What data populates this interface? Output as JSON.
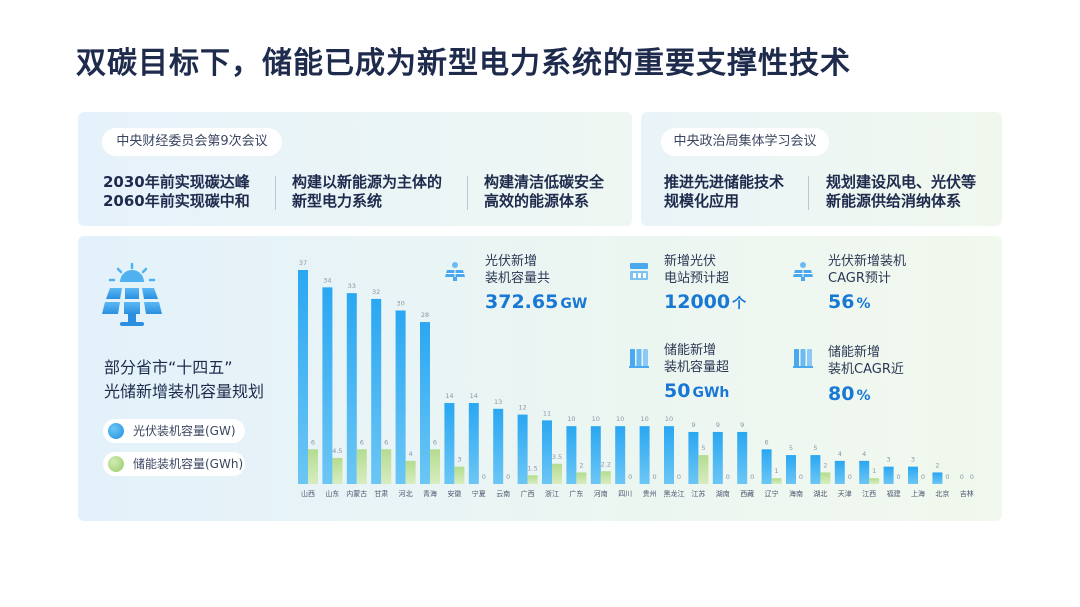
{
  "title": "双碳目标下，储能已成为新型电力系统的重要支撑性技术",
  "meetings": {
    "left": {
      "name": "中央财经委员会第9次会议",
      "goals": [
        [
          "2030年前实现碳达峰",
          "2060年前实现碳中和"
        ],
        [
          "构建以新能源为主体的",
          "新型电力系统"
        ],
        [
          "构建清洁低碳安全",
          "高效的能源体系"
        ]
      ]
    },
    "right": {
      "name": "中央政治局集体学习会议",
      "goals": [
        [
          "推进先进储能技术",
          "规模化应用"
        ],
        [
          "规划建设风电、光伏等",
          "新能源供给消纳体系"
        ]
      ]
    }
  },
  "left_panel": {
    "title_line1": "部分省市“十四五”",
    "title_line2": "光储新增装机容量规划"
  },
  "stats": [
    {
      "icon": "solar-panel-icon",
      "label1": "光伏新增",
      "label2": "装机容量共",
      "value": "372.65",
      "unit": "GW"
    },
    {
      "icon": "power-station-icon",
      "label1": "新增光伏",
      "label2": "电站预计超",
      "value": "12000",
      "unit": "个"
    },
    {
      "icon": "solar-panel-icon",
      "label1": "光伏新增装机",
      "label2": "CAGR预计",
      "value": "56",
      "unit": "%"
    },
    {
      "icon": "battery-storage-icon",
      "label1": "储能新增",
      "label2": "装机容量超",
      "value": "50",
      "unit": "GWh"
    },
    {
      "icon": "battery-storage-icon",
      "label1": "储能新增",
      "label2": "装机CAGR近",
      "value": "80",
      "unit": "%"
    }
  ],
  "colors": {
    "pv_top": "#2aa7f2",
    "pv_bottom": "#6cc6f5",
    "storage_top": "#b4dc8f",
    "storage_bottom": "#d8ecc0",
    "accent": "#1878d4"
  },
  "chart_data": {
    "type": "bar",
    "categories": [
      "山西",
      "山东",
      "内蒙古",
      "甘肃",
      "河北",
      "青海",
      "安徽",
      "宁夏",
      "云南",
      "广西",
      "浙江",
      "广东",
      "河南",
      "四川",
      "贵州",
      "黑龙江",
      "江苏",
      "湖南",
      "西藏",
      "辽宁",
      "海南",
      "湖北",
      "天津",
      "江西",
      "福建",
      "上海",
      "北京",
      "吉林"
    ],
    "series": [
      {
        "name": "光伏装机容量(GW)",
        "values": [
          37,
          34,
          33,
          32,
          30,
          28,
          14,
          14,
          13,
          12,
          11,
          10,
          10,
          10,
          10,
          10,
          9,
          9,
          9,
          6,
          5,
          5,
          4,
          4,
          3,
          3,
          2,
          0
        ]
      },
      {
        "name": "储能装机容量(GWh)",
        "values": [
          6,
          4.5,
          6,
          6,
          4,
          6,
          3,
          0,
          0,
          1.5,
          3.5,
          2,
          2.2,
          0,
          0,
          0,
          5,
          0,
          0,
          1,
          0,
          2,
          0,
          1,
          0,
          0,
          0,
          0
        ]
      }
    ],
    "ylim": [
      0,
      37
    ],
    "legend": "left"
  }
}
